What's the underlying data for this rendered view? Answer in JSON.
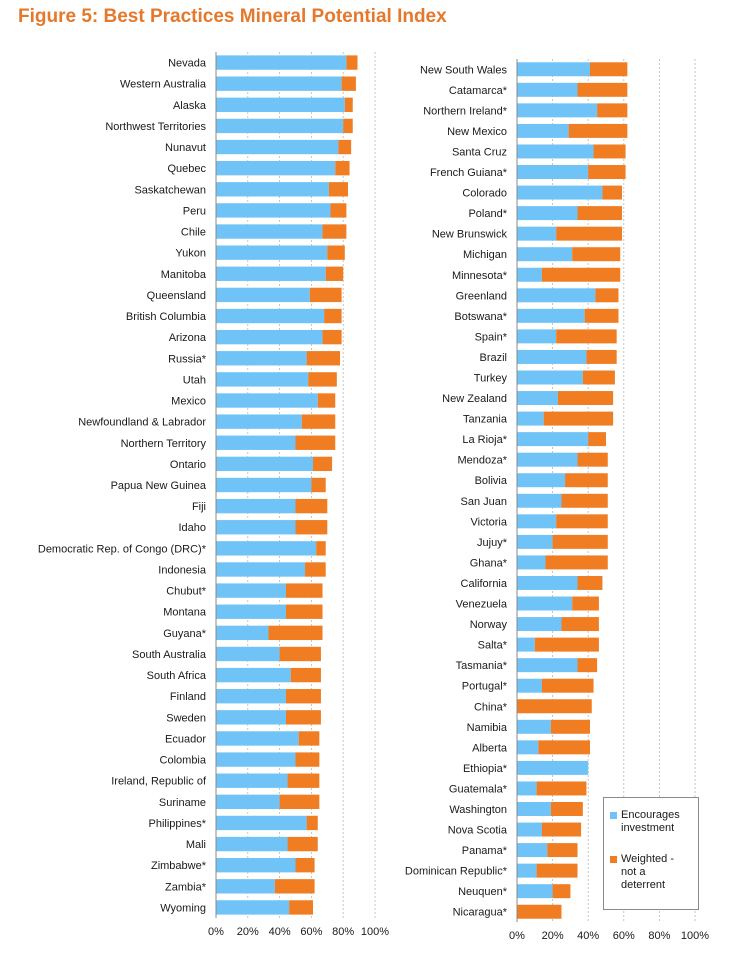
{
  "title": "Figure 5: Best Practices Mineral Potential Index",
  "colors": {
    "encourages": "#6fc3f7",
    "not_deterrent": "#f07d22"
  },
  "legend": [
    {
      "label": "Encourages\ninvestment",
      "color_key": "encourages"
    },
    {
      "label": "Weighted -\nnot a\ndeterrent",
      "color_key": "not_deterrent"
    }
  ],
  "chart_data": [
    {
      "type": "bar",
      "orientation": "horizontal",
      "stacked": true,
      "xlim": [
        0,
        100
      ],
      "x_ticks": [
        "0%",
        "20%",
        "40%",
        "60%",
        "80%",
        "100%"
      ],
      "grid": true,
      "legend_position": "bottom-right",
      "categories": [
        "Nevada",
        "Western Australia",
        "Alaska",
        "Northwest Territories",
        "Nunavut",
        "Quebec",
        "Saskatchewan",
        "Peru",
        "Chile",
        "Yukon",
        "Manitoba",
        "Queensland",
        "British Columbia",
        "Arizona",
        "Russia*",
        "Utah",
        "Mexico",
        "Newfoundland & Labrador",
        "Northern Territory",
        "Ontario",
        "Papua New Guinea",
        "Fiji",
        "Idaho",
        "Democratic Rep. of Congo (DRC)*",
        "Indonesia",
        "Chubut*",
        "Montana",
        "Guyana*",
        "South Australia",
        "South Africa",
        "Finland",
        "Sweden",
        "Ecuador",
        "Colombia",
        "Ireland, Republic of",
        "Suriname",
        "Philippines*",
        "Mali",
        "Zimbabwe*",
        "Zambia*",
        "Wyoming"
      ],
      "series": [
        {
          "name": "Encourages investment",
          "values": [
            82,
            79,
            81,
            80,
            77,
            75,
            71,
            72,
            67,
            70,
            69,
            59,
            68,
            67,
            57,
            58,
            64,
            54,
            50,
            61,
            60,
            50,
            50,
            63,
            56,
            44,
            44,
            33,
            40,
            47,
            44,
            44,
            52,
            50,
            45,
            40,
            57,
            45,
            50,
            37,
            46
          ]
        },
        {
          "name": "Weighted - not a deterrent",
          "values": [
            7,
            9,
            5,
            6,
            8,
            9,
            12,
            10,
            15,
            11,
            11,
            20,
            11,
            12,
            21,
            18,
            11,
            21,
            25,
            12,
            9,
            20,
            20,
            6,
            13,
            23,
            23,
            34,
            26,
            19,
            22,
            22,
            13,
            15,
            20,
            25,
            7,
            19,
            12,
            25,
            15
          ]
        }
      ]
    },
    {
      "type": "bar",
      "orientation": "horizontal",
      "stacked": true,
      "xlim": [
        0,
        100
      ],
      "x_ticks": [
        "0%",
        "20%",
        "40%",
        "60%",
        "80%",
        "100%"
      ],
      "grid": true,
      "legend_position": "bottom-right",
      "categories": [
        "New South Wales",
        "Catamarca*",
        "Northern Ireland*",
        "New Mexico",
        "Santa Cruz",
        "French Guiana*",
        "Colorado",
        "Poland*",
        "New Brunswick",
        "Michigan",
        "Minnesota*",
        "Greenland",
        "Botswana*",
        "Spain*",
        "Brazil",
        "Turkey",
        "New Zealand",
        "Tanzania",
        "La Rioja*",
        "Mendoza*",
        "Bolivia",
        "San Juan",
        "Victoria",
        "Jujuy*",
        "Ghana*",
        "California",
        "Venezuela",
        "Norway",
        "Salta*",
        "Tasmania*",
        "Portugal*",
        "China*",
        "Namibia",
        "Alberta",
        "Ethiopia*",
        "Guatemala*",
        "Washington",
        "Nova Scotia",
        "Panama*",
        "Dominican Republic*",
        "Neuquen*",
        "Nicaragua*"
      ],
      "series": [
        {
          "name": "Encourages investment",
          "values": [
            41,
            34,
            45,
            29,
            43,
            40,
            48,
            34,
            22,
            31,
            14,
            44,
            38,
            22,
            39,
            37,
            23,
            15,
            40,
            34,
            27,
            25,
            22,
            20,
            16,
            34,
            31,
            25,
            10,
            34,
            14,
            0,
            19,
            12,
            40,
            11,
            19,
            14,
            17,
            11,
            20,
            0
          ]
        },
        {
          "name": "Weighted - not a deterrent",
          "values": [
            21,
            28,
            17,
            33,
            18,
            21,
            11,
            25,
            37,
            27,
            44,
            13,
            19,
            34,
            17,
            18,
            31,
            39,
            10,
            17,
            24,
            26,
            29,
            31,
            35,
            14,
            15,
            21,
            36,
            11,
            29,
            42,
            22,
            29,
            0,
            28,
            18,
            22,
            17,
            23,
            10,
            25
          ]
        }
      ]
    }
  ]
}
